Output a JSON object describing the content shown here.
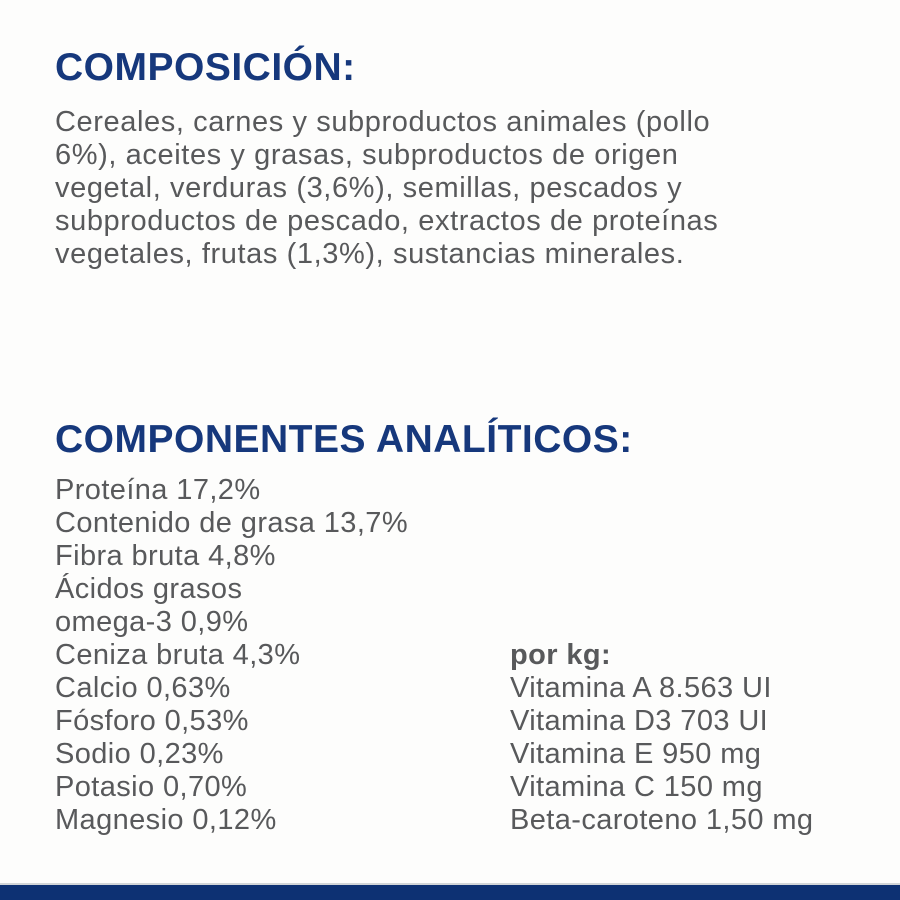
{
  "colors": {
    "heading_navy": "#16387c",
    "body_gray": "#58595b",
    "footer_bar": "#0d3173"
  },
  "composition": {
    "heading": "COMPOSICIÓN:",
    "lines": [
      "Cereales, carnes y subproductos animales (pollo",
      "6%), aceites y grasas, subproductos de origen",
      "vegetal, verduras (3,6%), semillas, pescados y",
      "subproductos de pescado, extractos de proteínas",
      "vegetales, frutas (1,3%), sustancias minerales."
    ]
  },
  "analytical": {
    "heading": "COMPONENTES ANALÍTICOS:",
    "nutrients": [
      "Proteína 17,2%",
      "Contenido de grasa 13,7%",
      "Fibra bruta 4,8%",
      "Ácidos grasos",
      "omega-3 0,9%",
      "Ceniza bruta 4,3%",
      "Calcio 0,63%",
      "Fósforo 0,53%",
      "Sodio 0,23%",
      "Potasio 0,70%",
      "Magnesio 0,12%"
    ],
    "per_kg": {
      "heading": "por kg:",
      "items": [
        "Vitamina A 8.563 UI",
        "Vitamina D3 703 UI",
        "Vitamina E 950 mg",
        "Vitamina C 150 mg",
        "Beta-caroteno 1,50 mg"
      ]
    }
  }
}
